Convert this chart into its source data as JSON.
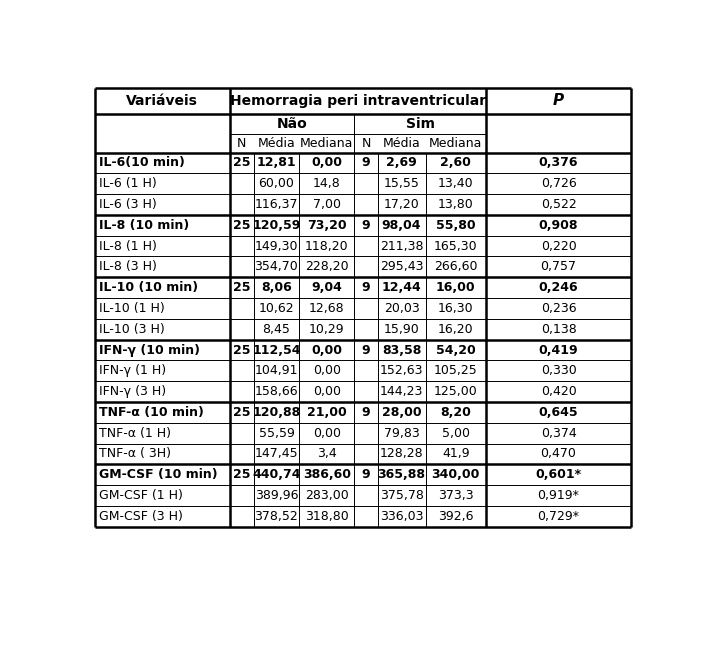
{
  "groups": [
    {
      "rows": [
        {
          "var": "IL-6(10 min)",
          "n_nao": "25",
          "media_nao": "12,81",
          "mediana_nao": "0,00",
          "n_sim": "9",
          "media_sim": "2,69",
          "mediana_sim": "2,60",
          "p": "0,376"
        },
        {
          "var": "IL-6 (1 H)",
          "n_nao": "",
          "media_nao": "60,00",
          "mediana_nao": "14,8",
          "n_sim": "",
          "media_sim": "15,55",
          "mediana_sim": "13,40",
          "p": "0,726"
        },
        {
          "var": "IL-6 (3 H)",
          "n_nao": "",
          "media_nao": "116,37",
          "mediana_nao": "7,00",
          "n_sim": "",
          "media_sim": "17,20",
          "mediana_sim": "13,80",
          "p": "0,522"
        }
      ]
    },
    {
      "rows": [
        {
          "var": "IL-8 (10 min)",
          "n_nao": "25",
          "media_nao": "120,59",
          "mediana_nao": "73,20",
          "n_sim": "9",
          "media_sim": "98,04",
          "mediana_sim": "55,80",
          "p": "0,908"
        },
        {
          "var": "IL-8 (1 H)",
          "n_nao": "",
          "media_nao": "149,30",
          "mediana_nao": "118,20",
          "n_sim": "",
          "media_sim": "211,38",
          "mediana_sim": "165,30",
          "p": "0,220"
        },
        {
          "var": "IL-8 (3 H)",
          "n_nao": "",
          "media_nao": "354,70",
          "mediana_nao": "228,20",
          "n_sim": "",
          "media_sim": "295,43",
          "mediana_sim": "266,60",
          "p": "0,757"
        }
      ]
    },
    {
      "rows": [
        {
          "var": "IL-10 (10 min)",
          "n_nao": "25",
          "media_nao": "8,06",
          "mediana_nao": "9,04",
          "n_sim": "9",
          "media_sim": "12,44",
          "mediana_sim": "16,00",
          "p": "0,246"
        },
        {
          "var": "IL-10 (1 H)",
          "n_nao": "",
          "media_nao": "10,62",
          "mediana_nao": "12,68",
          "n_sim": "",
          "media_sim": "20,03",
          "mediana_sim": "16,30",
          "p": "0,236"
        },
        {
          "var": "IL-10 (3 H)",
          "n_nao": "",
          "media_nao": "8,45",
          "mediana_nao": "10,29",
          "n_sim": "",
          "media_sim": "15,90",
          "mediana_sim": "16,20",
          "p": "0,138"
        }
      ]
    },
    {
      "rows": [
        {
          "var": "IFN-γ (10 min)",
          "n_nao": "25",
          "media_nao": "112,54",
          "mediana_nao": "0,00",
          "n_sim": "9",
          "media_sim": "83,58",
          "mediana_sim": "54,20",
          "p": "0,419"
        },
        {
          "var": "IFN-γ (1 H)",
          "n_nao": "",
          "media_nao": "104,91",
          "mediana_nao": "0,00",
          "n_sim": "",
          "media_sim": "152,63",
          "mediana_sim": "105,25",
          "p": "0,330"
        },
        {
          "var": "IFN-γ (3 H)",
          "n_nao": "",
          "media_nao": "158,66",
          "mediana_nao": "0,00",
          "n_sim": "",
          "media_sim": "144,23",
          "mediana_sim": "125,00",
          "p": "0,420"
        }
      ]
    },
    {
      "rows": [
        {
          "var": "TNF-α (10 min)",
          "n_nao": "25",
          "media_nao": "120,88",
          "mediana_nao": "21,00",
          "n_sim": "9",
          "media_sim": "28,00",
          "mediana_sim": "8,20",
          "p": "0,645"
        },
        {
          "var": "TNF-α (1 H)",
          "n_nao": "",
          "media_nao": "55,59",
          "mediana_nao": "0,00",
          "n_sim": "",
          "media_sim": "79,83",
          "mediana_sim": "5,00",
          "p": "0,374"
        },
        {
          "var": "TNF-α ( 3H)",
          "n_nao": "",
          "media_nao": "147,45",
          "mediana_nao": "3,4",
          "n_sim": "",
          "media_sim": "128,28",
          "mediana_sim": "41,9",
          "p": "0,470"
        }
      ]
    },
    {
      "rows": [
        {
          "var": "GM-CSF (10 min)",
          "n_nao": "25",
          "media_nao": "440,74",
          "mediana_nao": "386,60",
          "n_sim": "9",
          "media_sim": "365,88",
          "mediana_sim": "340,00",
          "p": "0,601*"
        },
        {
          "var": "GM-CSF (1 H)",
          "n_nao": "",
          "media_nao": "389,96",
          "mediana_nao": "283,00",
          "n_sim": "",
          "media_sim": "375,78",
          "mediana_sim": "373,3",
          "p": "0,919*"
        },
        {
          "var": "GM-CSF (3 H)",
          "n_nao": "",
          "media_nao": "378,52",
          "mediana_nao": "318,80",
          "n_sim": "",
          "media_sim": "336,03",
          "mediana_sim": "392,6",
          "p": "0,729*"
        }
      ]
    }
  ],
  "bg_color": "#ffffff",
  "text_color": "#000000",
  "header1_text": "Hemorragia peri intraventricular",
  "variavel_text": "Variáveis",
  "p_text": "P",
  "nao_text": "Não",
  "sim_text": "Sim",
  "col3_headers": [
    "N",
    "Média",
    "Mediana",
    "N",
    "Média",
    "Mediana"
  ],
  "font_size": 9.0,
  "header_font_size": 10.0,
  "thick_lw": 1.8,
  "thin_lw": 0.7
}
